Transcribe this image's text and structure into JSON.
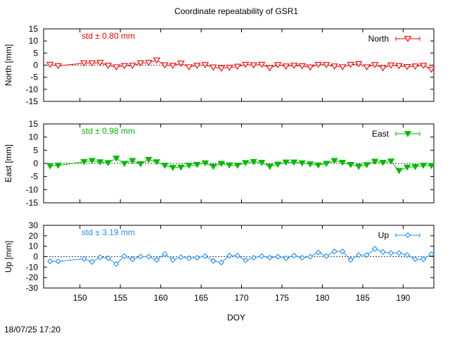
{
  "title": "Coordinate repeatability of GSR1",
  "xlabel": "DOY",
  "timestamp": "18/07/25 17:20",
  "x_ticks": [
    150,
    155,
    160,
    165,
    170,
    175,
    180,
    185,
    190
  ],
  "xlim": [
    145.5,
    193.8
  ],
  "chart_data": [
    {
      "type": "line",
      "name": "North",
      "legend": "North",
      "std_label": "std ± 0.80 mm",
      "ylabel": "North [mm]",
      "ylim": [
        -15,
        15
      ],
      "yticks": [
        15,
        10,
        5,
        0,
        -5,
        -10,
        -15
      ],
      "color": "#ff0000",
      "marker": "triangle-down-open",
      "x": [
        146.3,
        147.3,
        150.5,
        151.5,
        152.5,
        153.5,
        154.5,
        155.5,
        156.5,
        157.5,
        158.5,
        159.5,
        160.5,
        161.5,
        162.5,
        163.5,
        164.5,
        165.5,
        166.5,
        167.5,
        168.5,
        169.5,
        170.5,
        171.5,
        172.5,
        173.5,
        174.5,
        175.5,
        176.5,
        177.5,
        178.5,
        179.5,
        180.5,
        181.5,
        182.5,
        183.5,
        184.5,
        185.5,
        186.5,
        187.5,
        188.5,
        189.5,
        190.5,
        191.5,
        192.5,
        193.5
      ],
      "y": [
        0.2,
        -0.3,
        0.8,
        0.8,
        1.0,
        -0.2,
        -0.8,
        -0.3,
        -0.2,
        0.8,
        1.0,
        2.0,
        0.0,
        -0.2,
        0.7,
        -0.8,
        -0.2,
        0.1,
        -0.9,
        -1.3,
        -1.0,
        -0.6,
        0.2,
        0.0,
        0.2,
        -1.2,
        0.1,
        -0.5,
        -0.2,
        -0.4,
        -0.9,
        0.2,
        0.1,
        -0.5,
        -0.8,
        0.2,
        0.5,
        -0.8,
        0.1,
        -1.2,
        -0.1,
        -0.3,
        -0.7,
        -0.5,
        -0.2,
        -1.8
      ]
    },
    {
      "type": "line",
      "name": "East",
      "legend": "East",
      "std_label": "std ± 0.98 mm",
      "ylabel": "East [mm]",
      "ylim": [
        -15,
        15
      ],
      "yticks": [
        15,
        10,
        5,
        0,
        -5,
        -10,
        -15
      ],
      "color": "#00bb00",
      "marker": "triangle-down-filled",
      "x": [
        146.3,
        147.3,
        150.5,
        151.5,
        152.5,
        153.5,
        154.5,
        155.5,
        156.5,
        157.5,
        158.5,
        159.5,
        160.5,
        161.5,
        162.5,
        163.5,
        164.5,
        165.5,
        166.5,
        167.5,
        168.5,
        169.5,
        170.5,
        171.5,
        172.5,
        173.5,
        174.5,
        175.5,
        176.5,
        177.5,
        178.5,
        179.5,
        180.5,
        181.5,
        182.5,
        183.5,
        184.5,
        185.5,
        186.5,
        187.5,
        188.5,
        189.5,
        190.5,
        191.5,
        192.5,
        193.5
      ],
      "y": [
        -1.0,
        -0.8,
        0.6,
        1.0,
        0.5,
        0.2,
        1.9,
        -0.1,
        1.0,
        -0.2,
        1.4,
        0.5,
        -0.8,
        -1.6,
        -1.5,
        -0.8,
        -0.5,
        0.1,
        -1.2,
        -0.1,
        -0.7,
        -0.8,
        0.2,
        0.6,
        0.3,
        -1.2,
        -0.4,
        0.4,
        0.4,
        0.1,
        -0.3,
        -0.7,
        -0.1,
        1.0,
        0.3,
        -0.5,
        -1.2,
        -0.6,
        0.7,
        0.3,
        0.8,
        -2.8,
        -1.5,
        -1.3,
        -0.8,
        -0.9
      ]
    },
    {
      "type": "line",
      "name": "Up",
      "legend": "Up",
      "std_label": "std ± 3.19 mm",
      "ylabel": "Up [mm]",
      "ylim": [
        -30,
        30
      ],
      "yticks": [
        30,
        20,
        10,
        0,
        -10,
        -20,
        -30
      ],
      "color": "#1e90ff",
      "marker": "diamond-open",
      "x": [
        146.3,
        147.3,
        150.5,
        151.5,
        152.5,
        153.5,
        154.5,
        155.5,
        156.5,
        157.5,
        158.5,
        159.5,
        160.5,
        161.5,
        162.5,
        163.5,
        164.5,
        165.5,
        166.5,
        167.5,
        168.5,
        169.5,
        170.5,
        171.5,
        172.5,
        173.5,
        174.5,
        175.5,
        176.5,
        177.5,
        178.5,
        179.5,
        180.5,
        181.5,
        182.5,
        183.5,
        184.5,
        185.5,
        186.5,
        187.5,
        188.5,
        189.5,
        190.5,
        191.5,
        192.5,
        193.5
      ],
      "y": [
        -4.5,
        -4.5,
        -2.0,
        -5.0,
        -0.5,
        -1.5,
        -7.0,
        0.5,
        -2.5,
        0.0,
        0.0,
        -3.0,
        2.5,
        -3.0,
        -0.5,
        -1.5,
        -1.0,
        0.5,
        -4.0,
        -5.5,
        1.0,
        1.0,
        -3.5,
        -1.0,
        0.5,
        -1.0,
        0.0,
        -1.5,
        1.0,
        -1.0,
        0.0,
        4.0,
        0.5,
        5.0,
        5.0,
        -3.0,
        1.5,
        1.5,
        7.5,
        4.5,
        3.5,
        3.5,
        1.5,
        -2.5,
        -2.5,
        2.5
      ]
    }
  ]
}
